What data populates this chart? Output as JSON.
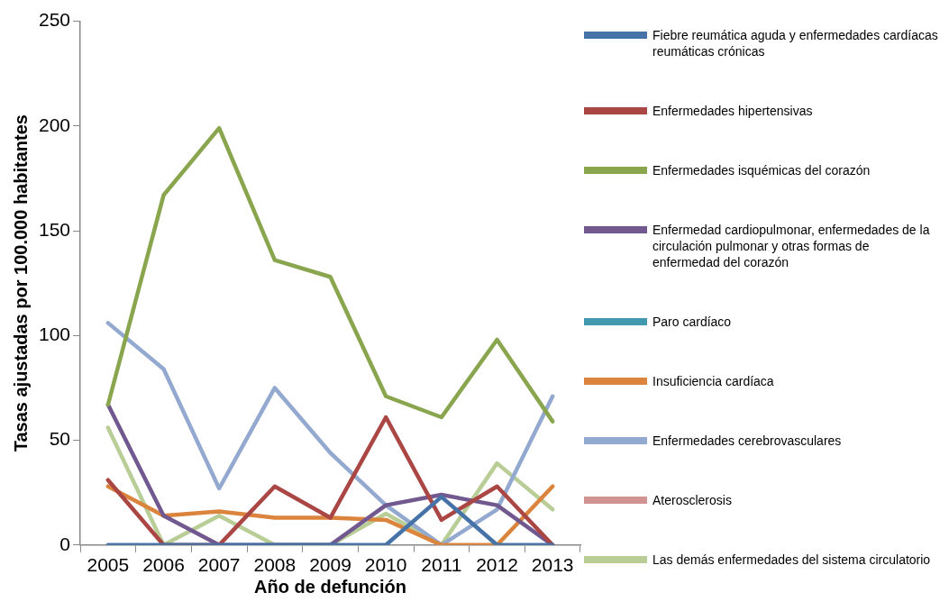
{
  "chart_data": {
    "type": "line",
    "xlabel": "Año de defunción",
    "ylabel": "Tasas ajustadas por 100.000 habitantes",
    "categories": [
      "2005",
      "2006",
      "2007",
      "2008",
      "2009",
      "2010",
      "2011",
      "2012",
      "2013"
    ],
    "ylim": [
      0,
      250
    ],
    "yticks": [
      0,
      50,
      100,
      150,
      200,
      250
    ],
    "grid": false,
    "legend": "right",
    "marker": "none",
    "line_style": "solid",
    "series": [
      {
        "name": "Fiebre reumática aguda y enfermedades cardíacas reumáticas crónicas",
        "color": "#4572a7",
        "values": [
          0,
          0,
          0,
          0,
          0,
          0,
          23,
          0,
          0
        ]
      },
      {
        "name": "Enfermedades hipertensivas",
        "color": "#aa4643",
        "values": [
          31,
          0,
          0,
          28,
          13,
          61,
          12,
          28,
          0
        ]
      },
      {
        "name": "Enfermedades isquémicas del corazón",
        "color": "#89a54e",
        "values": [
          67,
          167,
          199,
          136,
          128,
          71,
          61,
          98,
          59
        ]
      },
      {
        "name": "Enfermedad cardiopulmonar, enfermedades de la circulación pulmonar y otras formas de enfermedad del corazón",
        "color": "#71588f",
        "values": [
          67,
          14,
          0,
          0,
          0,
          19,
          24,
          19,
          0
        ]
      },
      {
        "name": "Paro cardíaco",
        "color": "#4198af",
        "values": [
          null,
          null,
          null,
          null,
          null,
          null,
          null,
          null,
          null
        ]
      },
      {
        "name": "Insuficiencia cardíaca",
        "color": "#db843d",
        "values": [
          28,
          14,
          16,
          13,
          13,
          12,
          0,
          0,
          28
        ]
      },
      {
        "name": "Enfermedades cerebrovasculares",
        "color": "#93a9cf",
        "values": [
          106,
          84,
          27,
          75,
          44,
          19,
          0,
          17,
          71
        ]
      },
      {
        "name": "Aterosclerosis",
        "color": "#d19392",
        "values": [
          null,
          null,
          null,
          null,
          null,
          null,
          null,
          null,
          null
        ]
      },
      {
        "name": "Las demás enfermedades del sistema circulatorio",
        "color": "#b9cd96",
        "values": [
          56,
          0,
          14,
          0,
          0,
          15,
          0,
          39,
          17
        ]
      }
    ]
  }
}
